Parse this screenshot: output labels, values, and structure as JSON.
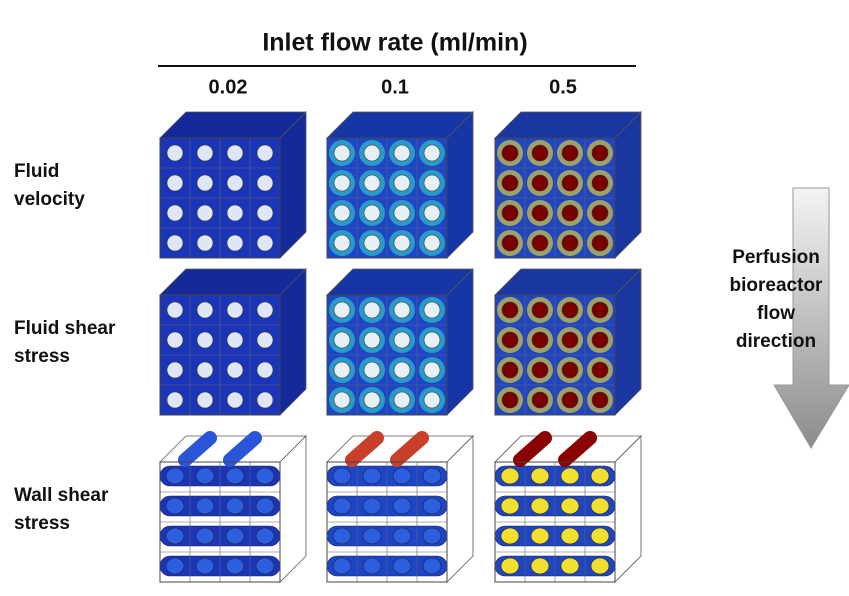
{
  "header": {
    "title": "Inlet flow rate (ml/min)"
  },
  "columns": [
    "0.02",
    "0.1",
    "0.5"
  ],
  "rows": [
    {
      "label": [
        "Fluid",
        "velocity"
      ]
    },
    {
      "label": [
        "Fluid shear",
        "stress"
      ]
    },
    {
      "label": [
        "Wall shear",
        "stress"
      ]
    }
  ],
  "arrow": {
    "label": [
      "Perfusion",
      "bioreactor",
      "flow",
      "direction"
    ]
  }
}
